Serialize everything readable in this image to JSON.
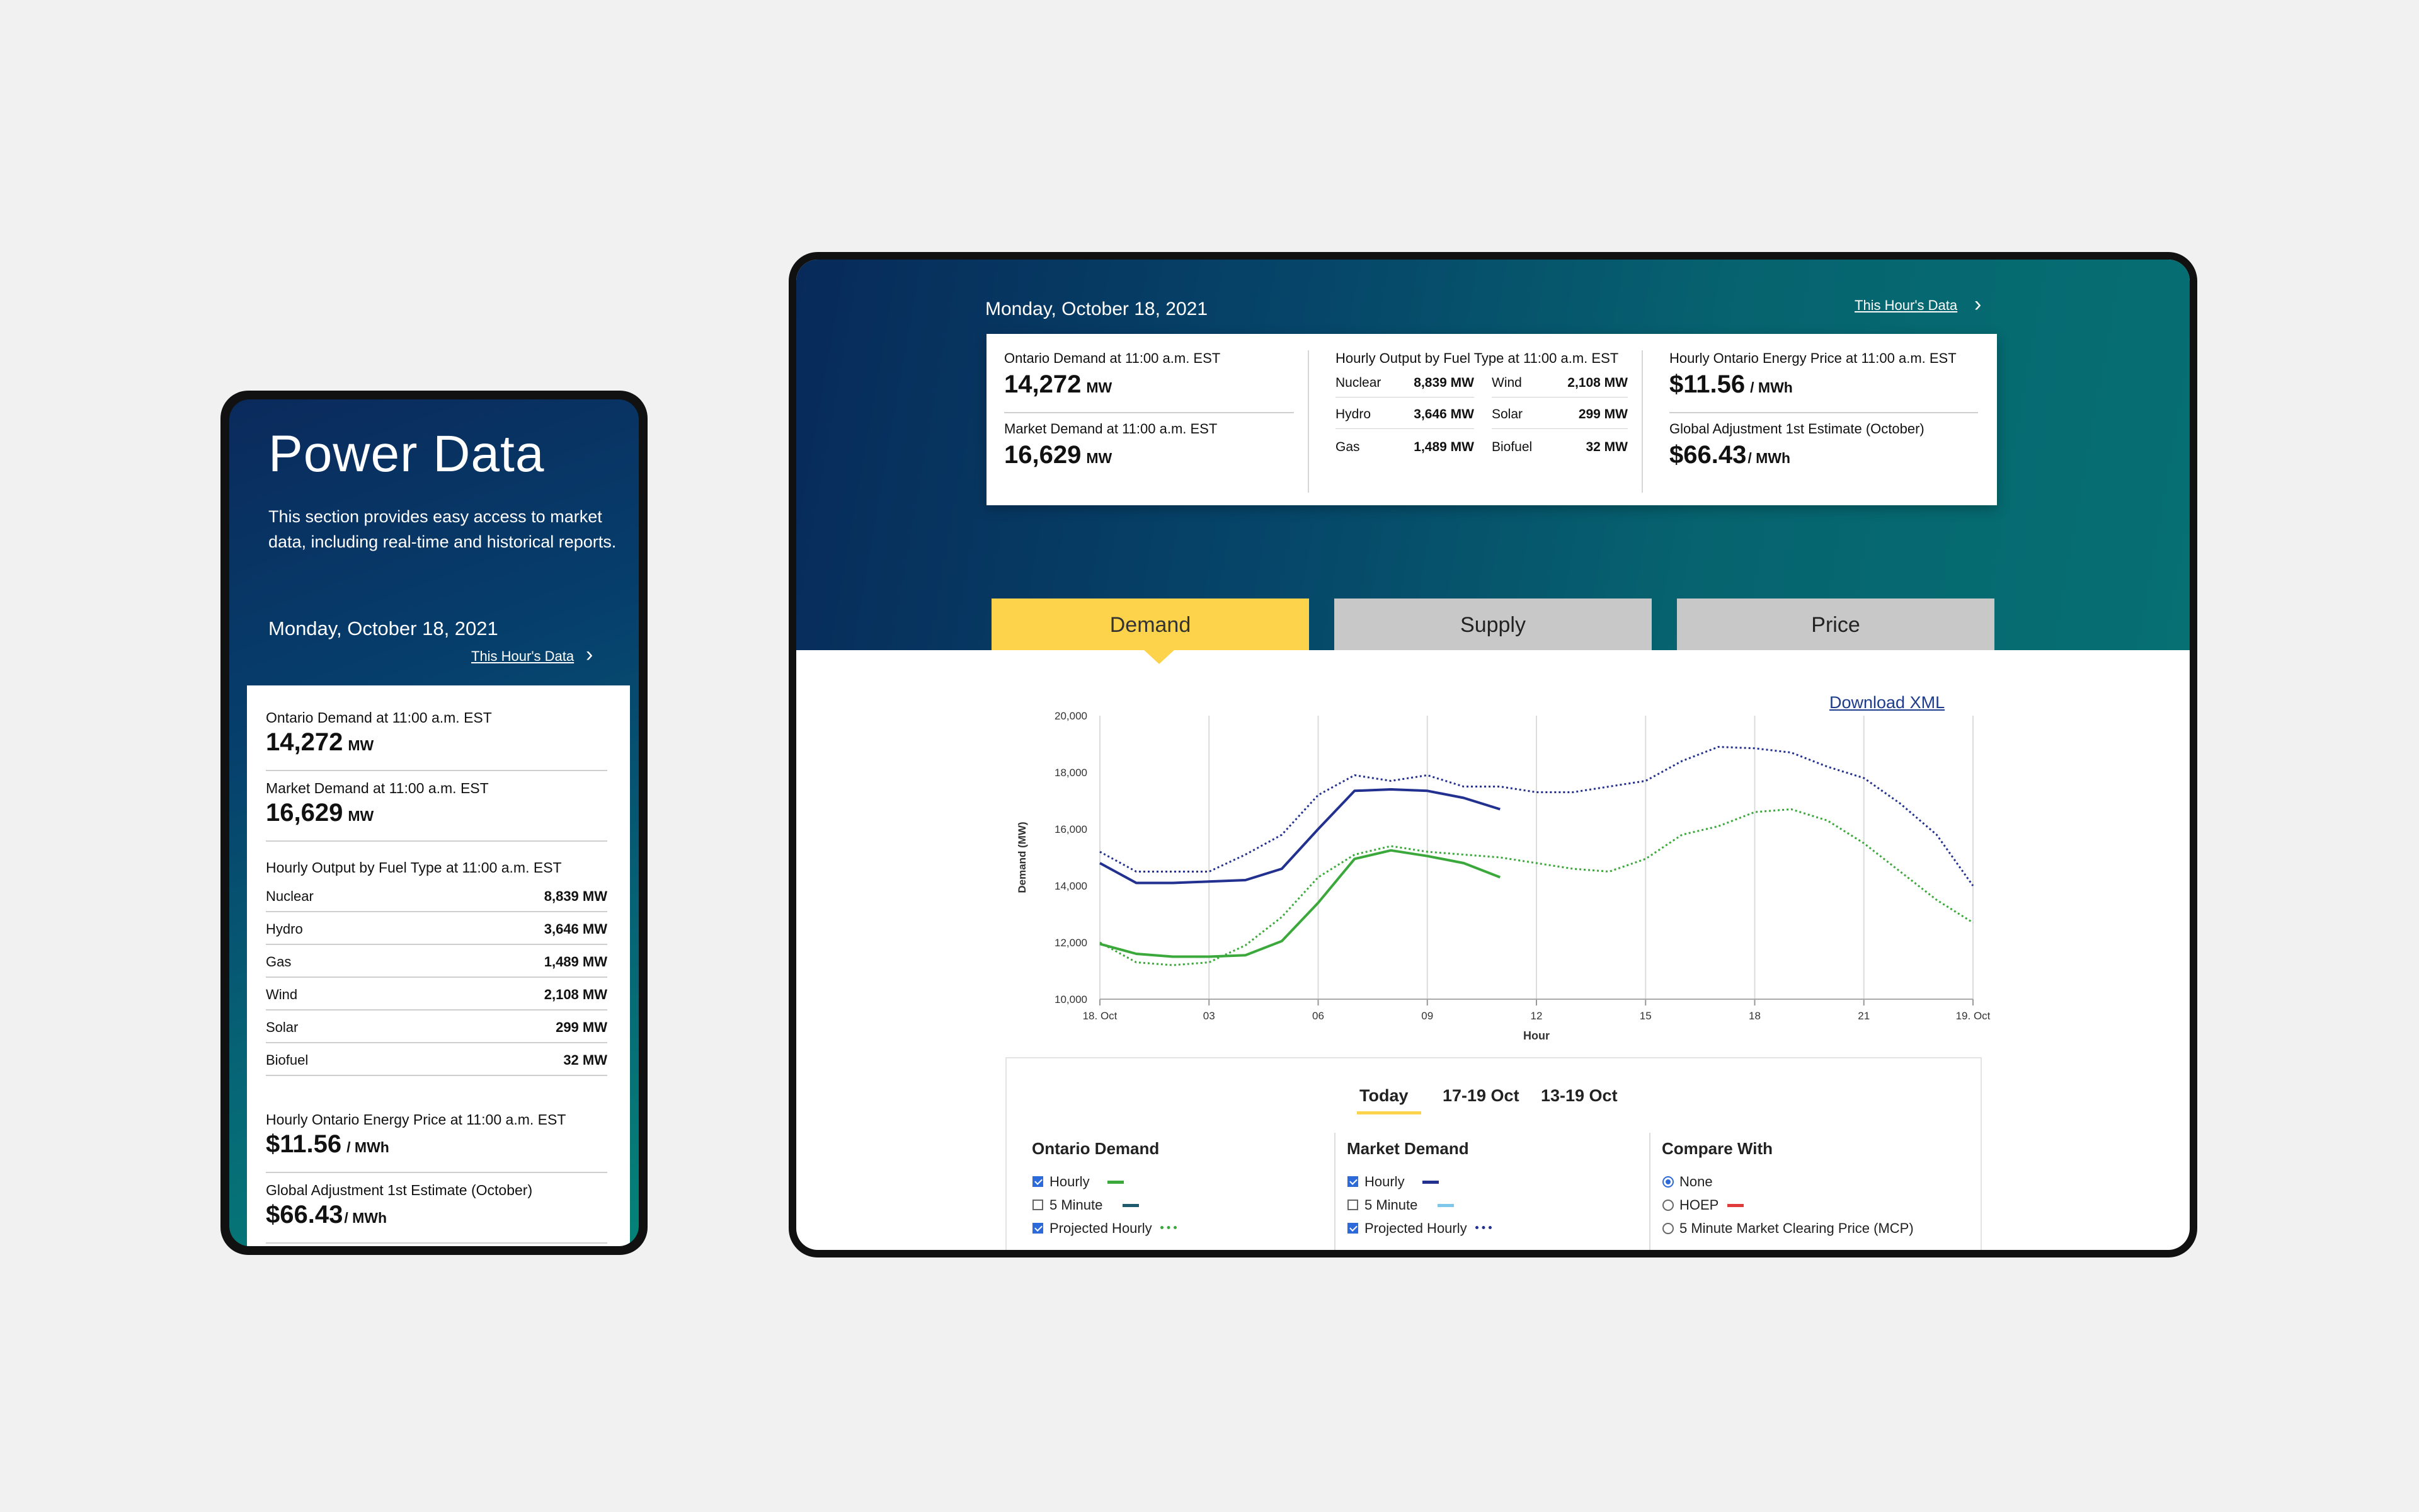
{
  "phone": {
    "title": "Power Data",
    "description": "This section provides easy access to market data, including real-time and historical reports.",
    "date": "Monday, October 18, 2021",
    "this_hours_data": "This Hour's Data",
    "ontario_demand_label": "Ontario Demand at 11:00 a.m. EST",
    "ontario_demand_value": "14,272",
    "market_demand_label": "Market Demand at 11:00 a.m. EST",
    "market_demand_value": "16,629",
    "mw_unit": "MW",
    "fuel_label": "Hourly Output by Fuel Type at 11:00 a.m. EST",
    "fuels": [
      {
        "name": "Nuclear",
        "value": "8,839 MW"
      },
      {
        "name": "Hydro",
        "value": "3,646 MW"
      },
      {
        "name": "Gas",
        "value": "1,489 MW"
      },
      {
        "name": "Wind",
        "value": "2,108 MW"
      },
      {
        "name": "Solar",
        "value": "299 MW"
      },
      {
        "name": "Biofuel",
        "value": "32 MW"
      }
    ],
    "price_label": "Hourly Ontario Energy Price at 11:00 a.m. EST",
    "price_value": "$11.56",
    "price_unit": "/ MWh",
    "ga_label": "Global Adjustment 1st Estimate (October)",
    "ga_value": "$66.43",
    "ga_unit": "/ MWh"
  },
  "tablet": {
    "date": "Monday, October 18, 2021",
    "this_hours_data": "This Hour's Data",
    "ontario_demand_label": "Ontario Demand at 11:00 a.m. EST",
    "ontario_demand_value": "14,272",
    "market_demand_label": "Market Demand at 11:00 a.m. EST",
    "market_demand_value": "16,629",
    "mw_unit": "MW",
    "fuel_label": "Hourly Output by Fuel Type at 11:00 a.m. EST",
    "fuels_left": [
      {
        "name": "Nuclear",
        "value": "8,839 MW"
      },
      {
        "name": "Hydro",
        "value": "3,646 MW"
      },
      {
        "name": "Gas",
        "value": "1,489 MW"
      }
    ],
    "fuels_right": [
      {
        "name": "Wind",
        "value": "2,108 MW"
      },
      {
        "name": "Solar",
        "value": "299 MW"
      },
      {
        "name": "Biofuel",
        "value": "32 MW"
      }
    ],
    "price_label": "Hourly Ontario Energy Price at 11:00 a.m. EST",
    "price_value": "$11.56",
    "price_unit": "/ MWh",
    "ga_label": "Global Adjustment 1st Estimate (October)",
    "ga_value": "$66.43",
    "ga_unit": "/ MWh",
    "tabs": [
      "Demand",
      "Supply",
      "Price"
    ],
    "download_xml": "Download XML",
    "periods": [
      "Today",
      "17-19 Oct",
      "13-19 Oct"
    ],
    "ontario_col": {
      "title": "Ontario Demand",
      "options": [
        {
          "label": "Hourly",
          "checked": true,
          "color": "#3aa83a",
          "style": "solid"
        },
        {
          "label": "5 Minute",
          "checked": false,
          "color": "#1e5a6e",
          "style": "solid"
        },
        {
          "label": "Projected Hourly",
          "checked": true,
          "color": "#3aa83a",
          "style": "dotted"
        }
      ]
    },
    "market_col": {
      "title": "Market Demand",
      "options": [
        {
          "label": "Hourly",
          "checked": true,
          "color": "#22318f",
          "style": "solid"
        },
        {
          "label": "5 Minute",
          "checked": false,
          "color": "#7fc7ea",
          "style": "solid"
        },
        {
          "label": "Projected Hourly",
          "checked": true,
          "color": "#22318f",
          "style": "dotted"
        }
      ]
    },
    "compare_col": {
      "title": "Compare With",
      "options": [
        {
          "label": "None",
          "selected": true,
          "color": ""
        },
        {
          "label": "HOEP",
          "selected": false,
          "color": "#e03a3a"
        },
        {
          "label": "5 Minute Market Clearing Price (MCP)",
          "selected": false,
          "color": ""
        }
      ]
    }
  },
  "chart_data": {
    "type": "line",
    "ylabel": "Demand (MW)",
    "xlabel": "Hour",
    "ylim": [
      10000,
      20000
    ],
    "yticks": [
      "10,000",
      "12,000",
      "14,000",
      "16,000",
      "18,000",
      "20,000"
    ],
    "xlim": [
      0,
      24
    ],
    "xtick_values": [
      0,
      3,
      6,
      9,
      12,
      15,
      18,
      21,
      24
    ],
    "xtick_labels": [
      "18. Oct",
      "03",
      "06",
      "09",
      "12",
      "15",
      "18",
      "21",
      "19. Oct"
    ],
    "grid": true,
    "series": [
      {
        "name": "Market Demand Hourly",
        "color": "#22318f",
        "style": "solid",
        "x": [
          0,
          1,
          2,
          3,
          4,
          5,
          6,
          7,
          8,
          9,
          10,
          11
        ],
        "y": [
          14800,
          14100,
          14100,
          14150,
          14200,
          14600,
          16000,
          17350,
          17400,
          17350,
          17100,
          16700
        ]
      },
      {
        "name": "Market Demand Projected Hourly",
        "color": "#22318f",
        "style": "dotted",
        "x": [
          0,
          1,
          2,
          3,
          4,
          5,
          6,
          7,
          8,
          9,
          10,
          11,
          12,
          13,
          14,
          15,
          16,
          17,
          18,
          19,
          20,
          21,
          22,
          23,
          24
        ],
        "y": [
          15200,
          14500,
          14500,
          14500,
          15100,
          15800,
          17200,
          17900,
          17700,
          17900,
          17500,
          17500,
          17300,
          17300,
          17500,
          17700,
          18400,
          18900,
          18850,
          18700,
          18200,
          17800,
          16900,
          15800,
          14000
        ]
      },
      {
        "name": "Ontario Demand Hourly",
        "color": "#3aa83a",
        "style": "solid",
        "x": [
          0,
          1,
          2,
          3,
          4,
          5,
          6,
          7,
          8,
          9,
          10,
          11
        ],
        "y": [
          11950,
          11600,
          11500,
          11500,
          11550,
          12050,
          13400,
          14950,
          15250,
          15050,
          14800,
          14300
        ]
      },
      {
        "name": "Ontario Demand Projected Hourly",
        "color": "#3aa83a",
        "style": "dotted",
        "x": [
          0,
          1,
          2,
          3,
          4,
          5,
          6,
          7,
          8,
          9,
          10,
          11,
          12,
          13,
          14,
          15,
          16,
          17,
          18,
          19,
          20,
          21,
          22,
          23,
          24
        ],
        "y": [
          12000,
          11300,
          11200,
          11300,
          11900,
          12900,
          14300,
          15100,
          15400,
          15200,
          15100,
          15000,
          14800,
          14600,
          14500,
          14950,
          15800,
          16100,
          16600,
          16700,
          16300,
          15500,
          14500,
          13500,
          12700
        ]
      }
    ]
  }
}
